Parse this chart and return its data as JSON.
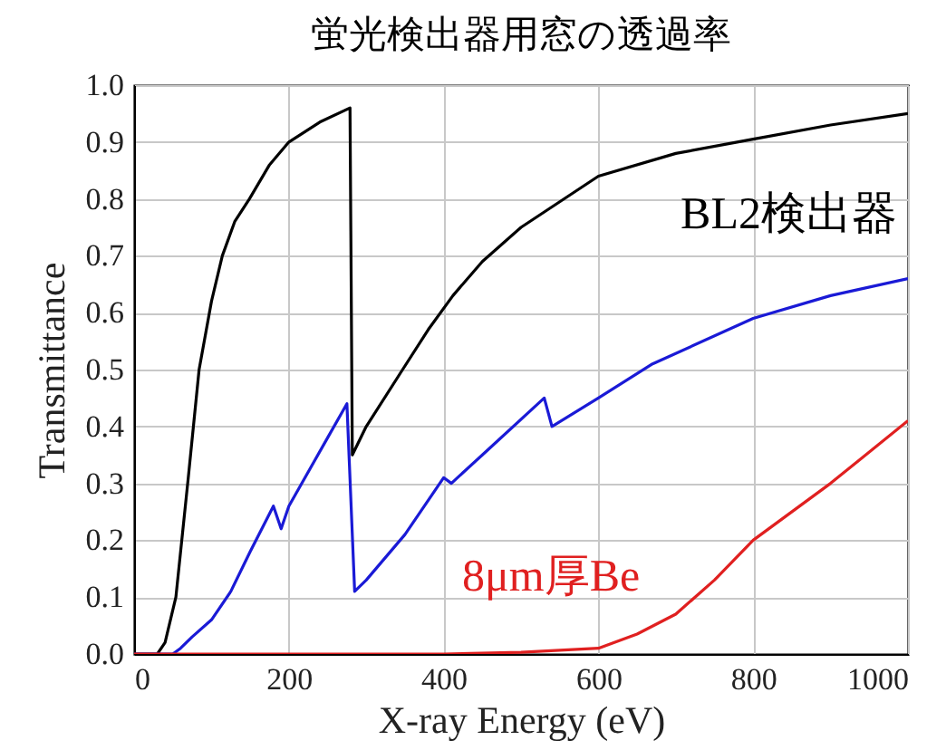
{
  "chart_data": {
    "type": "line",
    "title": "蛍光検出器用窓の透過率",
    "xlabel": "X-ray Energy (eV)",
    "ylabel": "Transmittance",
    "xlim": [
      0,
      1000
    ],
    "xticks": [
      0,
      200,
      400,
      600,
      800,
      1000
    ],
    "ylim": [
      0,
      1
    ],
    "yticks": [
      {
        "value": 0,
        "label": "0.0"
      },
      {
        "value": 0.1,
        "label": "0.1"
      },
      {
        "value": 0.2,
        "label": "0.2"
      },
      {
        "value": 0.3,
        "label": "0.3"
      },
      {
        "value": 0.4,
        "label": "0.4"
      },
      {
        "value": 0.5,
        "label": "0.5"
      },
      {
        "value": 0.6,
        "label": "0.6"
      },
      {
        "value": 0.7,
        "label": "0.7"
      },
      {
        "value": 0.8,
        "label": "0.8"
      },
      {
        "value": 0.9,
        "label": "0.9"
      },
      {
        "value": 1,
        "label": "1.0"
      }
    ],
    "grid": true,
    "legend": false,
    "series": [
      {
        "name": "BL2検出器",
        "color": "#000000",
        "x": [
          0,
          30,
          40,
          54,
          70,
          84,
          100,
          114,
          130,
          149,
          175,
          200,
          240,
          279,
          282,
          300,
          347,
          380,
          412,
          450,
          500,
          600,
          700,
          800,
          900,
          1000
        ],
        "values": [
          0,
          0,
          0.02,
          0.1,
          0.31,
          0.5,
          0.62,
          0.7,
          0.76,
          0.8,
          0.86,
          0.9,
          0.935,
          0.96,
          0.35,
          0.4,
          0.5,
          0.57,
          0.63,
          0.69,
          0.75,
          0.84,
          0.88,
          0.905,
          0.93,
          0.95
        ]
      },
      {
        "color": "#1a1ad6",
        "x": [
          0,
          50,
          60,
          75,
          100,
          125,
          150,
          180,
          190,
          200,
          250,
          275,
          285,
          300,
          350,
          400,
          410,
          450,
          530,
          540,
          600,
          670,
          800,
          900,
          1000
        ],
        "values": [
          0,
          0,
          0.01,
          0.03,
          0.06,
          0.11,
          0.18,
          0.26,
          0.22,
          0.26,
          0.38,
          0.44,
          0.11,
          0.13,
          0.21,
          0.31,
          0.3,
          0.35,
          0.45,
          0.4,
          0.45,
          0.51,
          0.59,
          0.63,
          0.66
        ]
      },
      {
        "name": "8μm厚Be",
        "color": "#e02020",
        "x": [
          0,
          400,
          500,
          600,
          650,
          700,
          750,
          800,
          900,
          1000
        ],
        "values": [
          0,
          0,
          0.003,
          0.01,
          0.035,
          0.07,
          0.13,
          0.2,
          0.3,
          0.41
        ]
      }
    ]
  }
}
